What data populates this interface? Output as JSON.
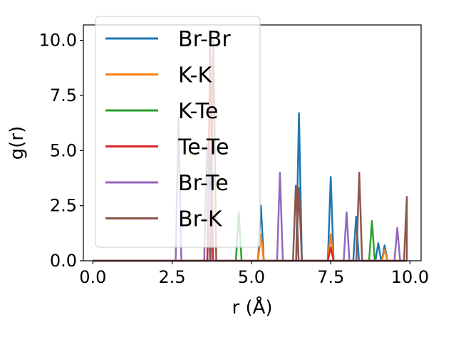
{
  "chart_data": {
    "type": "line",
    "xlabel": "r (Å)",
    "ylabel": "g(r)",
    "xlim": [
      -0.3,
      10.35
    ],
    "ylim": [
      0,
      10.7
    ],
    "xticks": [
      0.0,
      2.5,
      5.0,
      7.5,
      10.0
    ],
    "xtick_labels": [
      "0.0",
      "2.5",
      "5.0",
      "7.5",
      "10.0"
    ],
    "yticks": [
      0.0,
      2.5,
      5.0,
      7.5,
      10.0
    ],
    "ytick_labels": [
      "0.0",
      "2.5",
      "5.0",
      "7.5",
      "10.0"
    ],
    "grid": false,
    "legend_position": "upper-left",
    "series": [
      {
        "name": "Br-Br",
        "color": "#1f77b4",
        "peaks": [
          [
            3.7,
            5.0
          ],
          [
            5.3,
            2.5
          ],
          [
            6.5,
            6.7
          ],
          [
            7.5,
            3.8
          ],
          [
            8.3,
            2.0
          ],
          [
            9.0,
            0.8
          ],
          [
            9.2,
            0.7
          ]
        ]
      },
      {
        "name": "K-K",
        "color": "#ff7f0e",
        "peaks": [
          [
            5.3,
            1.2
          ],
          [
            7.5,
            1.2
          ],
          [
            9.2,
            0.5
          ]
        ]
      },
      {
        "name": "K-Te",
        "color": "#2ca02c",
        "peaks": [
          [
            4.6,
            2.2
          ],
          [
            8.8,
            1.8
          ]
        ]
      },
      {
        "name": "Te-Te",
        "color": "#d62728",
        "peaks": [
          [
            3.7,
            9.7
          ],
          [
            7.5,
            0.6
          ]
        ]
      },
      {
        "name": "Br-Te",
        "color": "#9467bd",
        "peaks": [
          [
            2.7,
            6.5
          ],
          [
            3.6,
            5.3
          ],
          [
            5.9,
            4.0
          ],
          [
            8.0,
            2.2
          ],
          [
            9.6,
            1.5
          ]
        ]
      },
      {
        "name": "Br-K",
        "color": "#8c564b",
        "peaks": [
          [
            3.8,
            10.0
          ],
          [
            6.4,
            3.4
          ],
          [
            6.5,
            3.3
          ],
          [
            8.4,
            4.0
          ],
          [
            9.9,
            2.9
          ]
        ]
      }
    ]
  }
}
